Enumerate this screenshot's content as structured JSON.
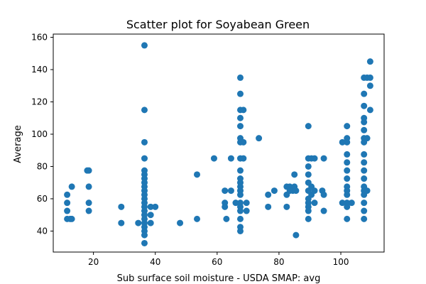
{
  "chart_data": {
    "type": "scatter",
    "title": "Scatter plot for Soyabean Green",
    "xlabel": "Sub surface soil moisture - USDA SMAP: avg",
    "ylabel": "Average",
    "xlim": [
      7,
      114
    ],
    "ylim": [
      27,
      162
    ],
    "xticks": [
      20,
      40,
      60,
      80,
      100
    ],
    "yticks": [
      40,
      60,
      80,
      100,
      120,
      140,
      160
    ],
    "grid": false,
    "marker_color": "#1f77b4",
    "points": [
      [
        11.5,
        62.5
      ],
      [
        11.5,
        57.5
      ],
      [
        11.5,
        52.5
      ],
      [
        11.5,
        47.5
      ],
      [
        12.5,
        47.5
      ],
      [
        13,
        67.5
      ],
      [
        13,
        47.5
      ],
      [
        18,
        77.5
      ],
      [
        18.5,
        77.5
      ],
      [
        18.5,
        67.5
      ],
      [
        18.5,
        57.5
      ],
      [
        18.5,
        52.5
      ],
      [
        29,
        55
      ],
      [
        29,
        45
      ],
      [
        34.5,
        45
      ],
      [
        36.5,
        155
      ],
      [
        36.5,
        115
      ],
      [
        36.5,
        95
      ],
      [
        36.5,
        85
      ],
      [
        36.5,
        77.5
      ],
      [
        36.5,
        75
      ],
      [
        36.5,
        72.5
      ],
      [
        36.5,
        70
      ],
      [
        36.5,
        67.5
      ],
      [
        36.5,
        65
      ],
      [
        36.5,
        62.5
      ],
      [
        36.5,
        60
      ],
      [
        36.5,
        57.5
      ],
      [
        36.5,
        55
      ],
      [
        36.5,
        52.5
      ],
      [
        36.5,
        50
      ],
      [
        36.5,
        47.5
      ],
      [
        36.5,
        45
      ],
      [
        36.5,
        42.5
      ],
      [
        36.5,
        40
      ],
      [
        36.5,
        37.5
      ],
      [
        36.5,
        32.5
      ],
      [
        38.5,
        55
      ],
      [
        38.5,
        50
      ],
      [
        38.5,
        45
      ],
      [
        40,
        55
      ],
      [
        48,
        45
      ],
      [
        53.5,
        75
      ],
      [
        53.5,
        47.5
      ],
      [
        59,
        85
      ],
      [
        62.5,
        65
      ],
      [
        62.5,
        57.5
      ],
      [
        62.5,
        55
      ],
      [
        63,
        47.5
      ],
      [
        64.5,
        85
      ],
      [
        64.5,
        65
      ],
      [
        66,
        57.5
      ],
      [
        67.5,
        135
      ],
      [
        67.5,
        125
      ],
      [
        67.5,
        115
      ],
      [
        67.5,
        110
      ],
      [
        67.5,
        105
      ],
      [
        67.5,
        97.5
      ],
      [
        67.5,
        95
      ],
      [
        67.5,
        85
      ],
      [
        67.5,
        77.5
      ],
      [
        67.5,
        72.5
      ],
      [
        67.5,
        70
      ],
      [
        67.5,
        67.5
      ],
      [
        67.5,
        65
      ],
      [
        67.5,
        62.5
      ],
      [
        67.5,
        57.5
      ],
      [
        67.5,
        55
      ],
      [
        67.5,
        52.5
      ],
      [
        67.5,
        47.5
      ],
      [
        67.5,
        42.5
      ],
      [
        67.5,
        40
      ],
      [
        68.5,
        115
      ],
      [
        68.5,
        95
      ],
      [
        68.5,
        85
      ],
      [
        69.5,
        57.5
      ],
      [
        69.5,
        52.5
      ],
      [
        73.5,
        97.5
      ],
      [
        76.5,
        62.5
      ],
      [
        76.5,
        55
      ],
      [
        78.5,
        65
      ],
      [
        82.5,
        67.5
      ],
      [
        82.5,
        62.5
      ],
      [
        82.5,
        55
      ],
      [
        83.5,
        67.5
      ],
      [
        83.5,
        65
      ],
      [
        84.5,
        65
      ],
      [
        85,
        67.5
      ],
      [
        85,
        75
      ],
      [
        85.5,
        37.5
      ],
      [
        85.5,
        65
      ],
      [
        89.5,
        105
      ],
      [
        89.5,
        85
      ],
      [
        89.5,
        80
      ],
      [
        89.5,
        75
      ],
      [
        89.5,
        70
      ],
      [
        89.5,
        65
      ],
      [
        89.5,
        60
      ],
      [
        89.5,
        57.5
      ],
      [
        89.5,
        55
      ],
      [
        89.5,
        52.5
      ],
      [
        89.5,
        47.5
      ],
      [
        90.5,
        85
      ],
      [
        90.5,
        67.5
      ],
      [
        90.5,
        62.5
      ],
      [
        91.5,
        85
      ],
      [
        91.5,
        65
      ],
      [
        91.5,
        57.5
      ],
      [
        94,
        65
      ],
      [
        94.5,
        85
      ],
      [
        94.5,
        62.5
      ],
      [
        94.5,
        52.5
      ],
      [
        100.5,
        95
      ],
      [
        100.5,
        57.5
      ],
      [
        102,
        105
      ],
      [
        102,
        97.5
      ],
      [
        102,
        95
      ],
      [
        102,
        87.5
      ],
      [
        102,
        82.5
      ],
      [
        102,
        77.5
      ],
      [
        102,
        72.5
      ],
      [
        102,
        67.5
      ],
      [
        102,
        65
      ],
      [
        102,
        62.5
      ],
      [
        102,
        57.5
      ],
      [
        102,
        55
      ],
      [
        102,
        47.5
      ],
      [
        103.5,
        57.5
      ],
      [
        107.5,
        135
      ],
      [
        107.5,
        125
      ],
      [
        107.5,
        117.5
      ],
      [
        107.5,
        110
      ],
      [
        107.5,
        107.5
      ],
      [
        107.5,
        102.5
      ],
      [
        107.5,
        97.5
      ],
      [
        107.5,
        95
      ],
      [
        107.5,
        87.5
      ],
      [
        107.5,
        82.5
      ],
      [
        107.5,
        77.5
      ],
      [
        107.5,
        72.5
      ],
      [
        107.5,
        67.5
      ],
      [
        107.5,
        65
      ],
      [
        107.5,
        62.5
      ],
      [
        107.5,
        57.5
      ],
      [
        107.5,
        52.5
      ],
      [
        107.5,
        47.5
      ],
      [
        108.5,
        135
      ],
      [
        108.5,
        97.5
      ],
      [
        108.5,
        65
      ],
      [
        109.5,
        145
      ],
      [
        109.5,
        135
      ],
      [
        109.5,
        130
      ],
      [
        109.5,
        115
      ]
    ]
  }
}
